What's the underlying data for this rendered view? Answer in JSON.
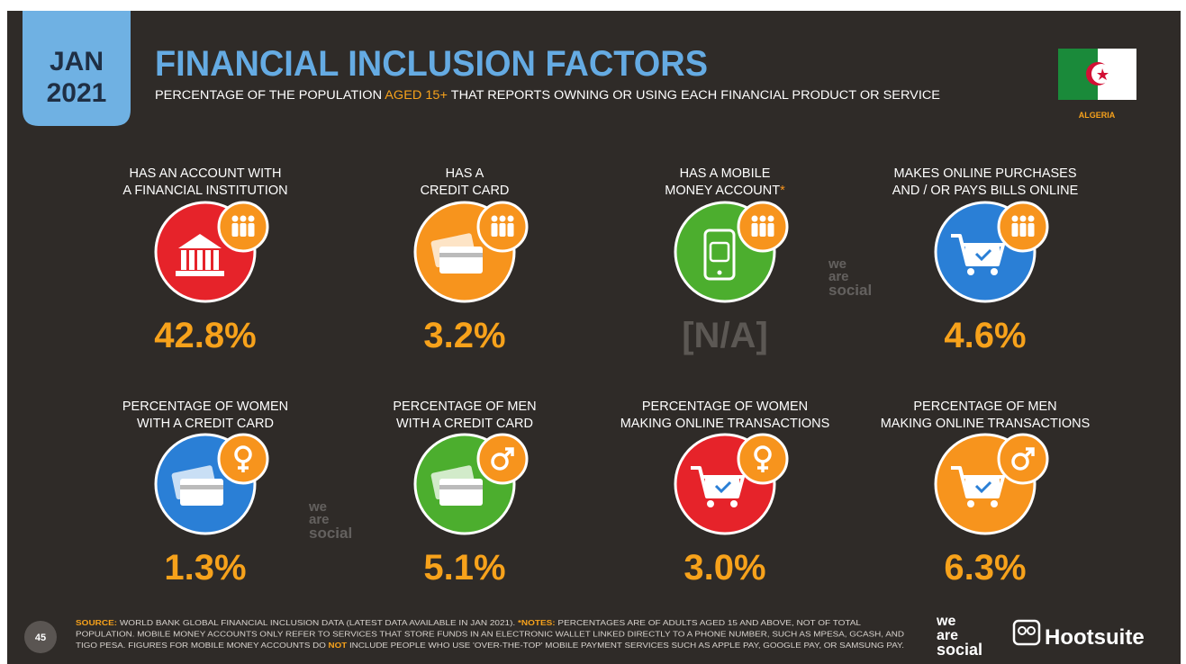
{
  "header": {
    "month": "JAN",
    "year": "2021",
    "title": "FINANCIAL INCLUSION FACTORS",
    "subtitle": [
      "PERCENTAGE OF THE POPULATION ",
      "AGED 15+",
      " THAT REPORTS OWNING OR USING EACH FINANCIAL PRODUCT OR SERVICE"
    ],
    "country": "ALGERIA"
  },
  "items": [
    {
      "label": [
        "HAS AN ACCOUNT WITH",
        "A FINANCIAL INSTITUTION"
      ],
      "value": "42.8%"
    },
    {
      "label": [
        "HAS A",
        "CREDIT CARD"
      ],
      "value": "3.2%"
    },
    {
      "label": [
        "HAS A MOBILE",
        "MONEY ACCOUNT"
      ],
      "marker": "*",
      "value": "[N/A]"
    },
    {
      "label": [
        "MAKES ONLINE PURCHASES",
        "AND / OR PAYS BILLS ONLINE"
      ],
      "value": "4.6%"
    },
    {
      "label": [
        "PERCENTAGE OF WOMEN",
        "WITH A CREDIT CARD"
      ],
      "value": "1.3%"
    },
    {
      "label": [
        "PERCENTAGE OF MEN",
        "WITH A CREDIT CARD"
      ],
      "value": "5.1%"
    },
    {
      "label": [
        "PERCENTAGE OF WOMEN",
        "MAKING ONLINE TRANSACTIONS"
      ],
      "value": "3.0%"
    },
    {
      "label": [
        "PERCENTAGE OF MEN",
        "MAKING ONLINE TRANSACTIONS"
      ],
      "value": "6.3%"
    }
  ],
  "footer": {
    "page": "45",
    "lines": [
      [
        "SOURCE:",
        " WORLD BANK GLOBAL FINANCIAL INCLUSION DATA (LATEST DATA AVAILABLE IN JAN 2021). ",
        "*NOTES:",
        " PERCENTAGES ARE OF ADULTS AGED 15 AND ABOVE, NOT OF TOTAL"
      ],
      [
        "POPULATION. MOBILE MONEY ACCOUNTS ONLY REFER TO SERVICES THAT STORE FUNDS IN AN ELECTRONIC WALLET LINKED DIRECTLY TO A PHONE NUMBER, SUCH AS MPESA, GCASH, AND"
      ],
      [
        "TIGO PESA. FIGURES FOR MOBILE MONEY ACCOUNTS DO ",
        "NOT",
        " INCLUDE PEOPLE WHO USE 'OVER-THE-TOP' MOBILE PAYMENT SERVICES SUCH AS APPLE PAY, GOOGLE PAY, OR SAMSUNG PAY."
      ]
    ]
  },
  "brand": {
    "we_are_social": [
      "we",
      "are",
      "social"
    ],
    "hootsuite": "Hootsuite"
  }
}
